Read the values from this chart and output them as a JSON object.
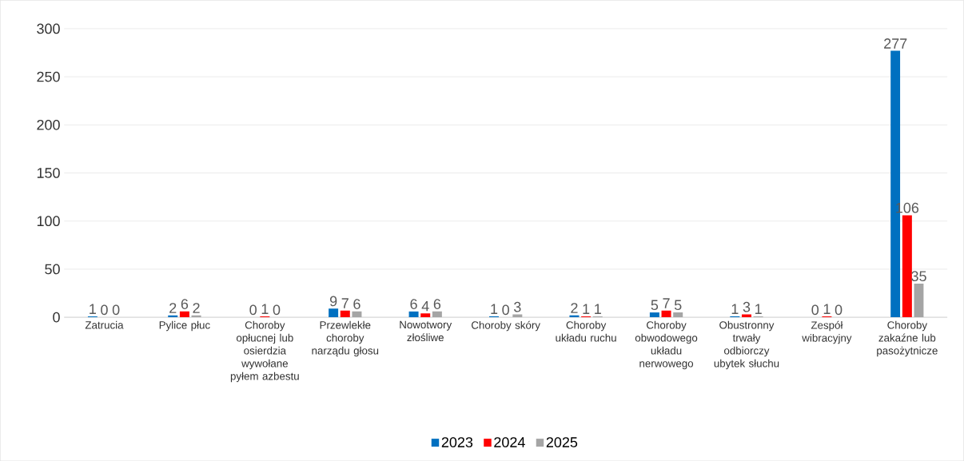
{
  "chart_data": {
    "type": "bar",
    "categories": [
      "Zatrucia",
      "Pylice płuc",
      "Choroby opłucnej lub osierdzia wywołane pyłem azbestu",
      "Przewlekłe choroby narządu głosu",
      "Nowotwory złośliwe",
      "Choroby skóry",
      "Choroby układu ruchu",
      "Choroby obwodowego układu nerwowego",
      "Obustronny trwały odbiorczy ubytek słuchu",
      "Zespół wibracyjny",
      "Choroby zakaźne lub pasożytnicze"
    ],
    "series": [
      {
        "name": "2023",
        "color": "#0070c0",
        "values": [
          1,
          2,
          0,
          9,
          6,
          1,
          2,
          5,
          1,
          0,
          277
        ]
      },
      {
        "name": "2024",
        "color": "#ff0000",
        "values": [
          0,
          6,
          1,
          7,
          4,
          0,
          1,
          7,
          3,
          1,
          106
        ]
      },
      {
        "name": "2025",
        "color": "#a5a5a5",
        "values": [
          0,
          2,
          0,
          6,
          6,
          3,
          1,
          5,
          1,
          0,
          35
        ]
      }
    ],
    "ylim": [
      0,
      300
    ],
    "yticks": [
      0,
      50,
      100,
      150,
      200,
      250,
      300
    ],
    "grid": "y",
    "legend": "bottom",
    "data_labels": true
  }
}
